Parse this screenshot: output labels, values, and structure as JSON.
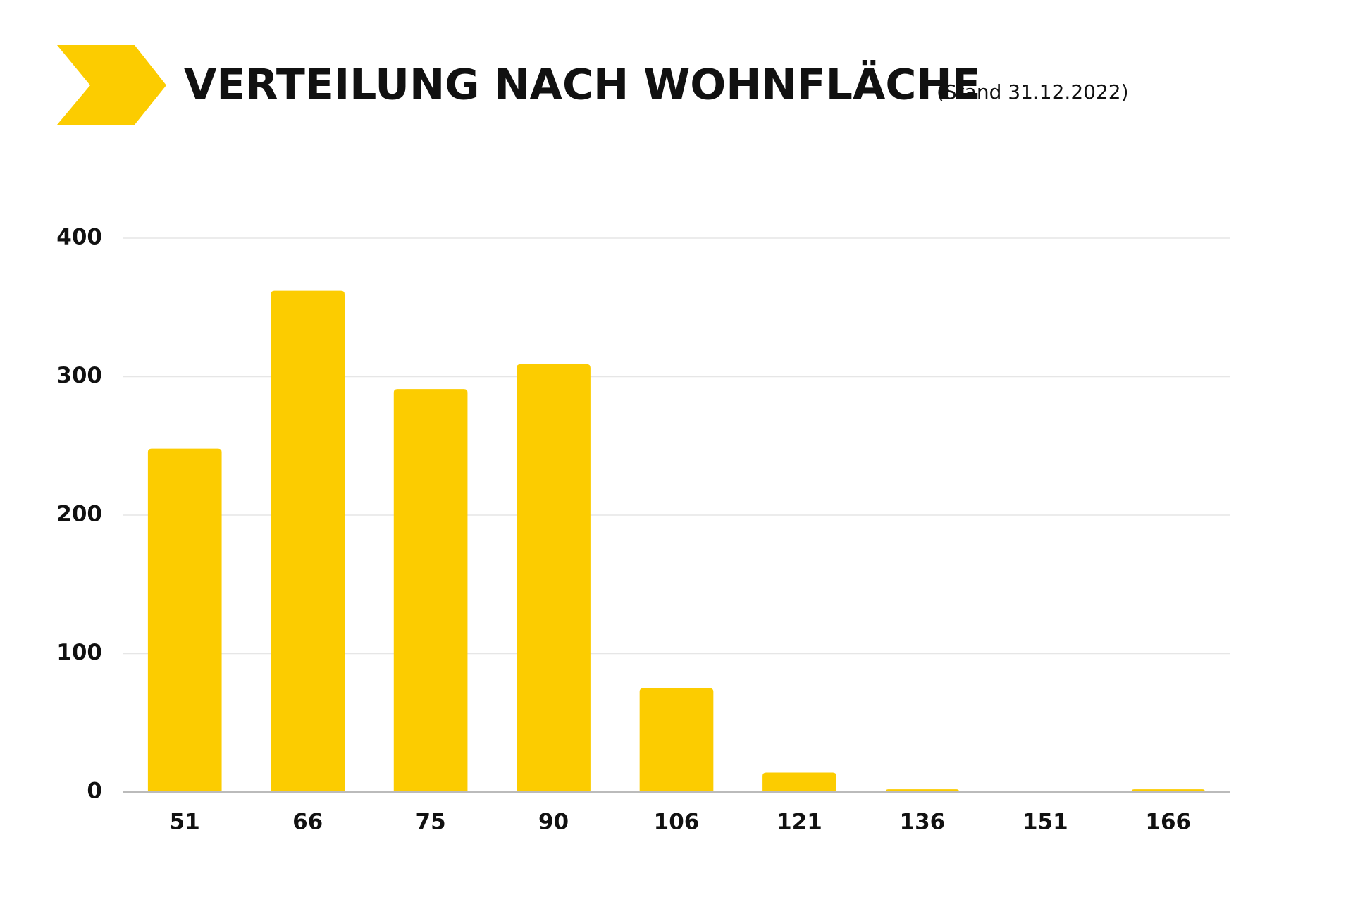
{
  "chart_data": {
    "type": "bar",
    "title": "VERTEILUNG NACH WOHNFLÄCHE",
    "subtitle": "(Stand 31.12.2022)",
    "categories": [
      "51",
      "66",
      "75",
      "90",
      "106",
      "121",
      "136",
      "151",
      "166"
    ],
    "values": [
      248,
      362,
      291,
      309,
      75,
      14,
      2,
      0,
      2
    ],
    "color": "#fccc00",
    "ylim": [
      0,
      400
    ],
    "yticks": [
      0,
      100,
      200,
      300,
      400
    ],
    "grid": true
  }
}
